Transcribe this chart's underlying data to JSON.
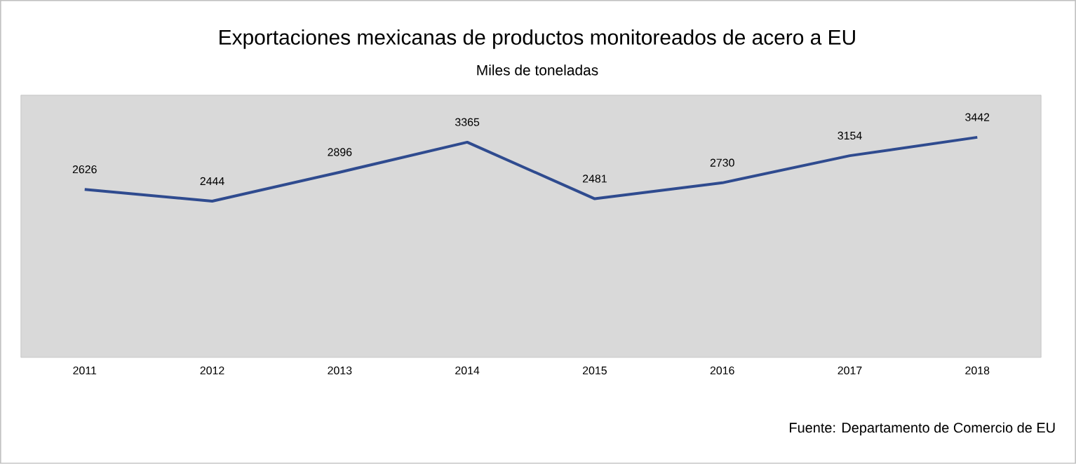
{
  "chart_data": {
    "type": "line",
    "title": "Exportaciones mexicanas de productos monitoreados de acero a EU",
    "subtitle": "Miles de toneladas",
    "categories": [
      "2011",
      "2012",
      "2013",
      "2014",
      "2015",
      "2016",
      "2017",
      "2018"
    ],
    "values": [
      2626,
      2444,
      2896,
      3365,
      2481,
      2730,
      3154,
      3442
    ],
    "color": "#2f4b8f",
    "ylim": [
      0,
      4100
    ],
    "data_labels": true,
    "tick_labels": "x",
    "annotations": [
      "Fuente: Departamento de Comercio de EU"
    ]
  }
}
